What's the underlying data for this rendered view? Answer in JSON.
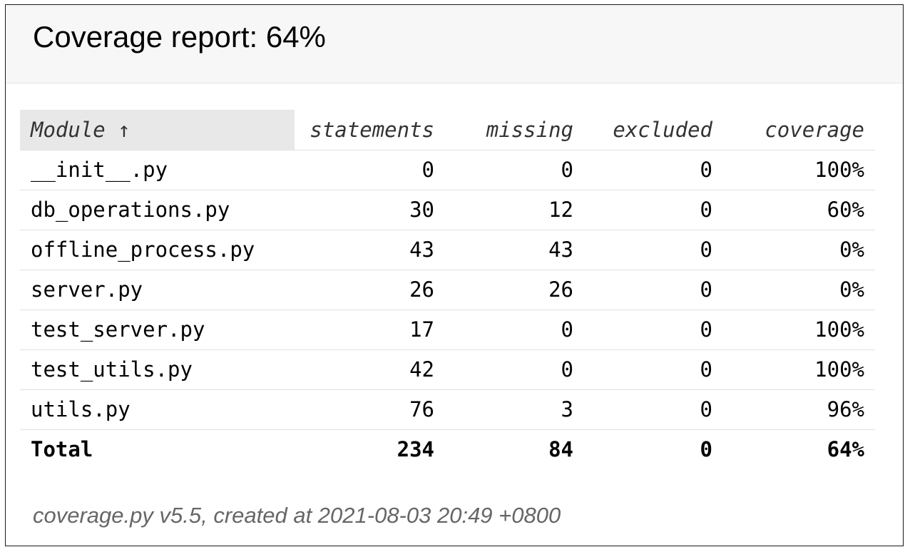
{
  "report": {
    "title": "Coverage report: 64%"
  },
  "table": {
    "headers": {
      "module": "Module ↑",
      "statements": "statements",
      "missing": "missing",
      "excluded": "excluded",
      "coverage": "coverage"
    },
    "rows": [
      {
        "module": "__init__.py",
        "statements": "0",
        "missing": "0",
        "excluded": "0",
        "coverage": "100%"
      },
      {
        "module": "db_operations.py",
        "statements": "30",
        "missing": "12",
        "excluded": "0",
        "coverage": "60%"
      },
      {
        "module": "offline_process.py",
        "statements": "43",
        "missing": "43",
        "excluded": "0",
        "coverage": "0%"
      },
      {
        "module": "server.py",
        "statements": "26",
        "missing": "26",
        "excluded": "0",
        "coverage": "0%"
      },
      {
        "module": "test_server.py",
        "statements": "17",
        "missing": "0",
        "excluded": "0",
        "coverage": "100%"
      },
      {
        "module": "test_utils.py",
        "statements": "42",
        "missing": "0",
        "excluded": "0",
        "coverage": "100%"
      },
      {
        "module": "utils.py",
        "statements": "76",
        "missing": "3",
        "excluded": "0",
        "coverage": "96%"
      }
    ],
    "total": {
      "module": "Total",
      "statements": "234",
      "missing": "84",
      "excluded": "0",
      "coverage": "64%"
    }
  },
  "footer": {
    "text": "coverage.py v5.5, created at 2021-08-03 20:49 +0800"
  }
}
